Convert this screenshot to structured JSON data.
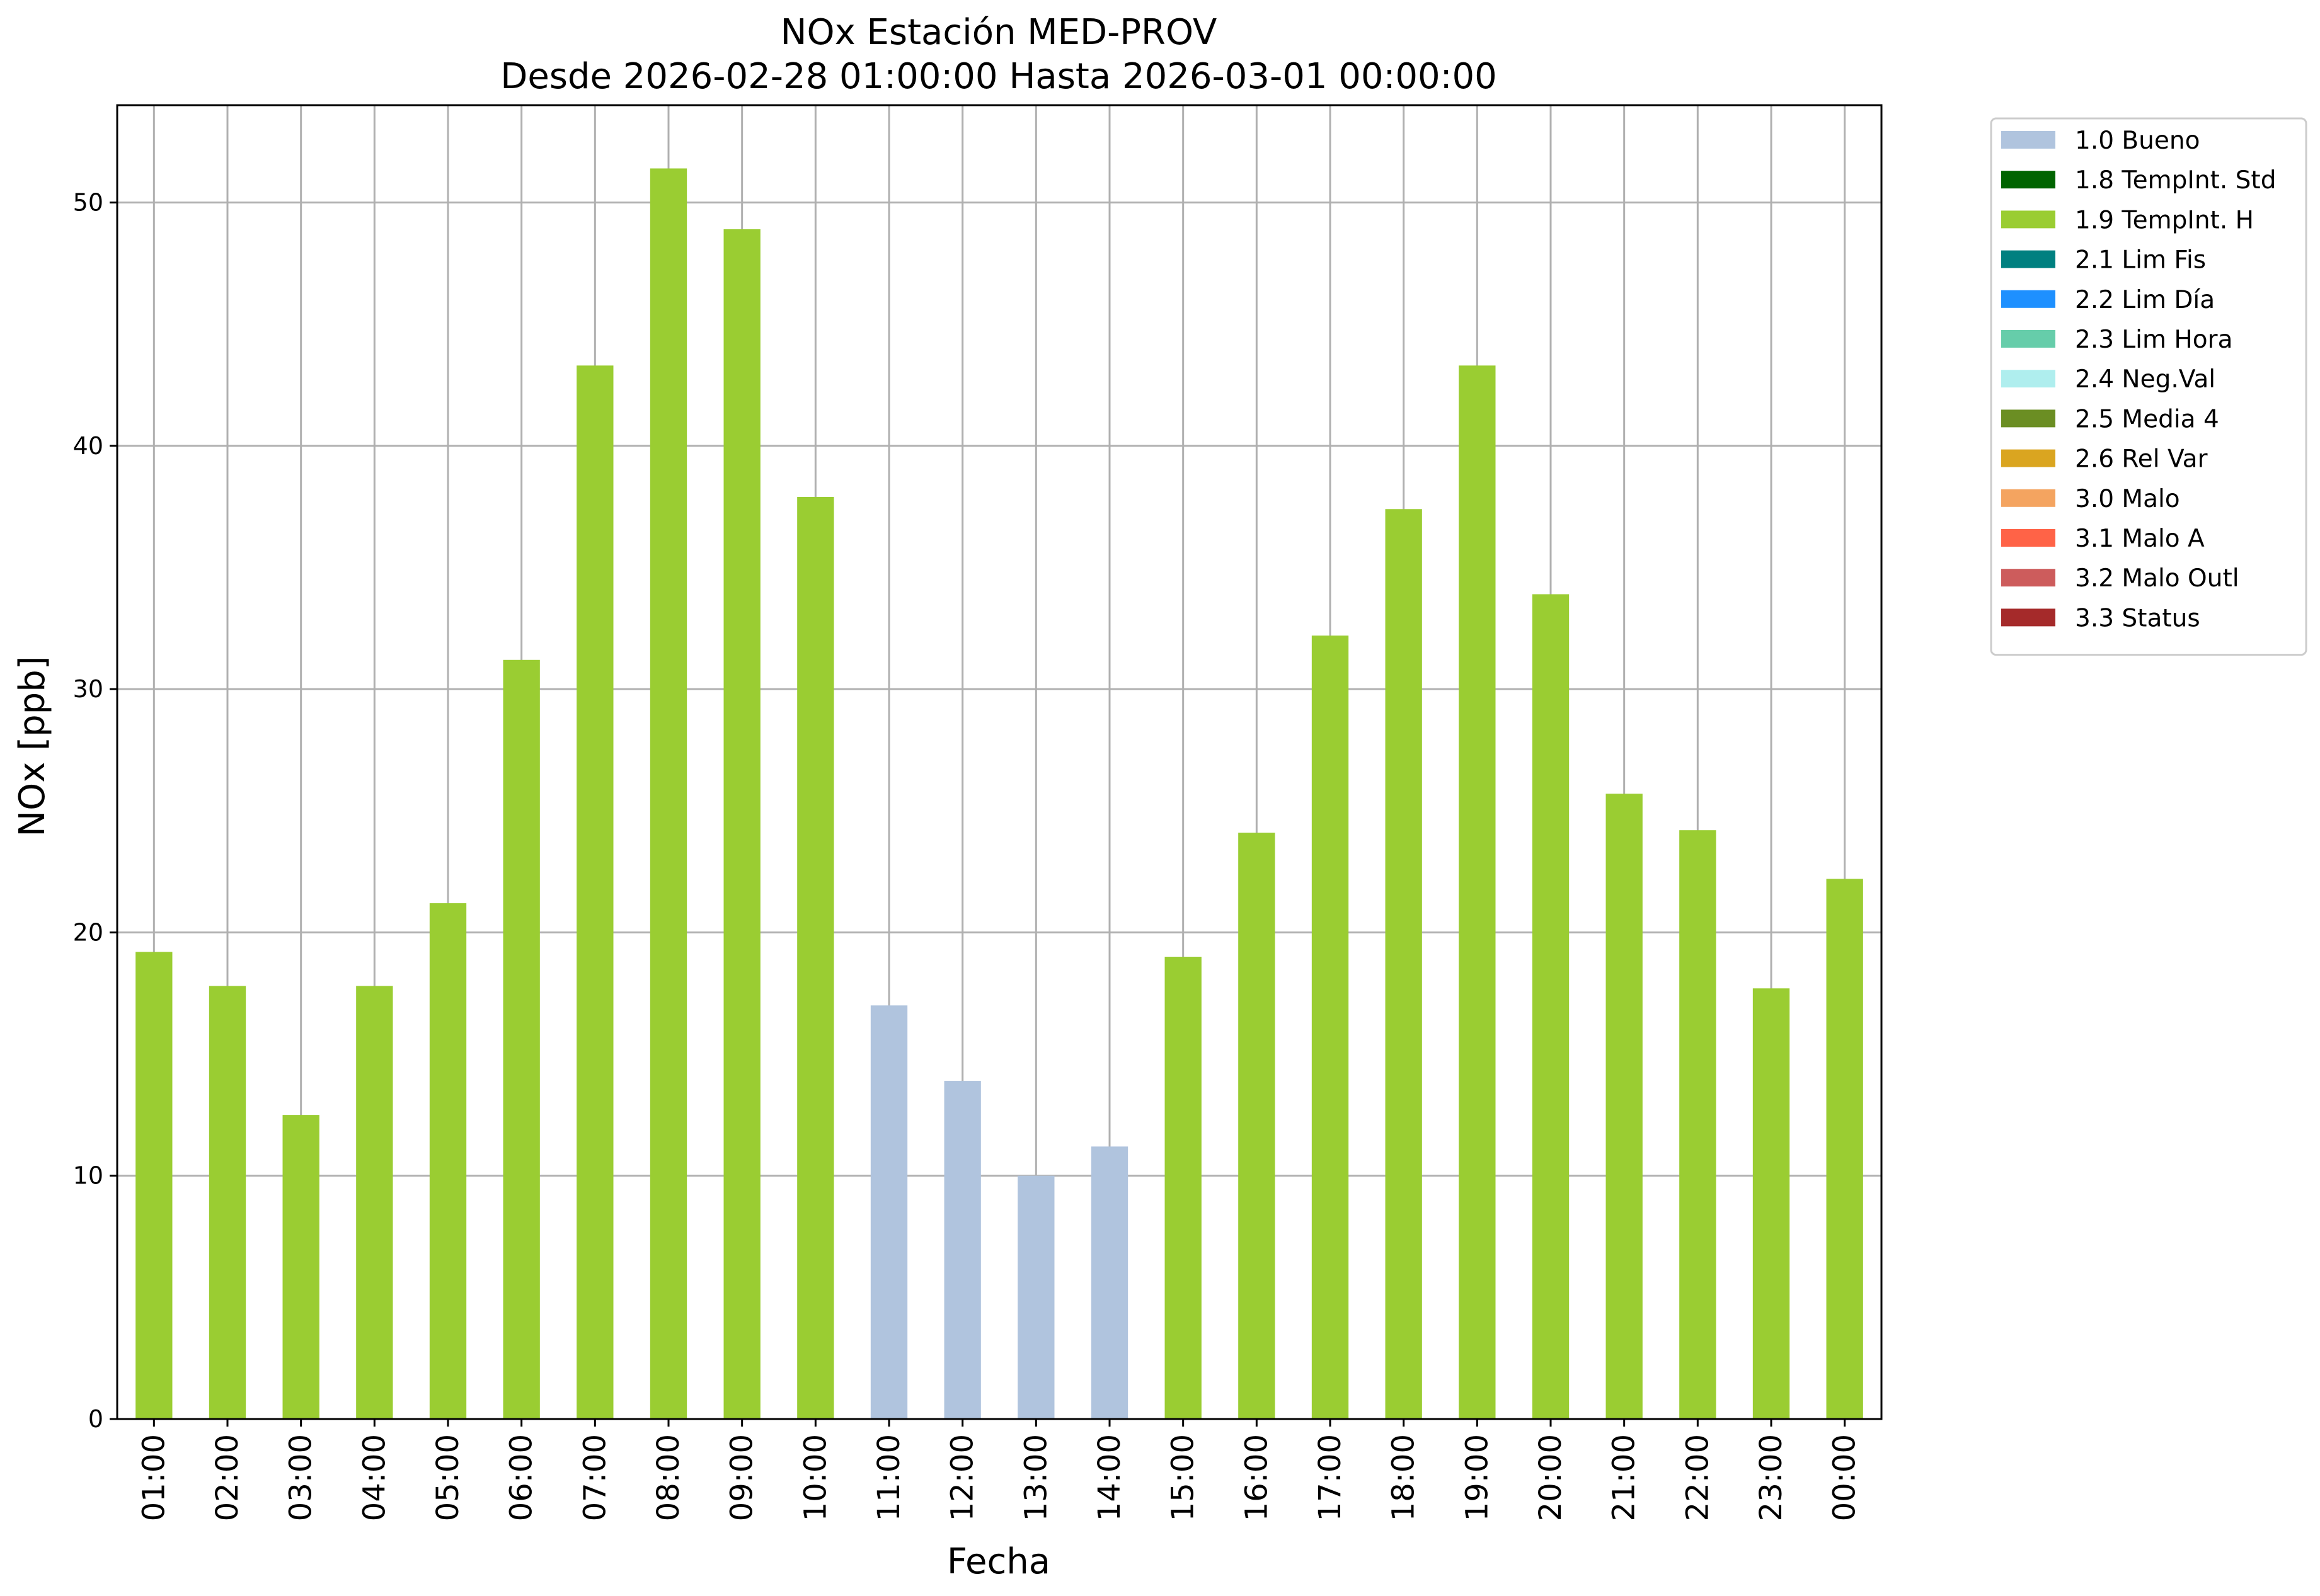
{
  "chart_data": {
    "type": "bar",
    "title": "NOx Estación MED-PROV",
    "subtitle": "Desde 2026-02-28 01:00:00 Hasta 2026-03-01 00:00:00",
    "xlabel": "Fecha",
    "ylabel": "NOx [ppb]",
    "ylim": [
      0,
      54
    ],
    "yticks": [
      0,
      10,
      20,
      30,
      40,
      50
    ],
    "grid": true,
    "legend_position": "outside-right",
    "categories": [
      "01:00",
      "02:00",
      "03:00",
      "04:00",
      "05:00",
      "06:00",
      "07:00",
      "08:00",
      "09:00",
      "10:00",
      "11:00",
      "12:00",
      "13:00",
      "14:00",
      "15:00",
      "16:00",
      "17:00",
      "18:00",
      "19:00",
      "20:00",
      "21:00",
      "22:00",
      "23:00",
      "00:00"
    ],
    "values": [
      19.2,
      17.8,
      12.5,
      17.8,
      21.2,
      31.2,
      43.3,
      51.4,
      48.9,
      37.9,
      17.0,
      13.9,
      10.0,
      11.2,
      19.0,
      24.1,
      32.2,
      37.4,
      43.3,
      33.9,
      25.7,
      24.2,
      17.7,
      22.2
    ],
    "flags": [
      "1.9",
      "1.9",
      "1.9",
      "1.9",
      "1.9",
      "1.9",
      "1.9",
      "1.9",
      "1.9",
      "1.9",
      "1.0",
      "1.0",
      "1.0",
      "1.0",
      "1.9",
      "1.9",
      "1.9",
      "1.9",
      "1.9",
      "1.9",
      "1.9",
      "1.9",
      "1.9",
      "1.9"
    ],
    "legend": [
      {
        "code": "1.0",
        "label": "1.0 Bueno",
        "color": "#b0c4de"
      },
      {
        "code": "1.8",
        "label": "1.8 TempInt. Std",
        "color": "#006400"
      },
      {
        "code": "1.9",
        "label": "1.9 TempInt. H",
        "color": "#9acd32"
      },
      {
        "code": "2.1",
        "label": "2.1 Lim Fis",
        "color": "#008080"
      },
      {
        "code": "2.2",
        "label": "2.2 Lim Día",
        "color": "#1e90ff"
      },
      {
        "code": "2.3",
        "label": "2.3 Lim Hora",
        "color": "#66cdaa"
      },
      {
        "code": "2.4",
        "label": "2.4 Neg.Val",
        "color": "#afeeee"
      },
      {
        "code": "2.5",
        "label": "2.5 Media 4",
        "color": "#6b8e23"
      },
      {
        "code": "2.6",
        "label": "2.6 Rel Var",
        "color": "#daa520"
      },
      {
        "code": "3.0",
        "label": "3.0 Malo",
        "color": "#f4a460"
      },
      {
        "code": "3.1",
        "label": "3.1 Malo A",
        "color": "#ff6347"
      },
      {
        "code": "3.2",
        "label": "3.2 Malo Outl",
        "color": "#cd5c5c"
      },
      {
        "code": "3.3",
        "label": "3.3 Status",
        "color": "#a52a2a"
      }
    ]
  }
}
